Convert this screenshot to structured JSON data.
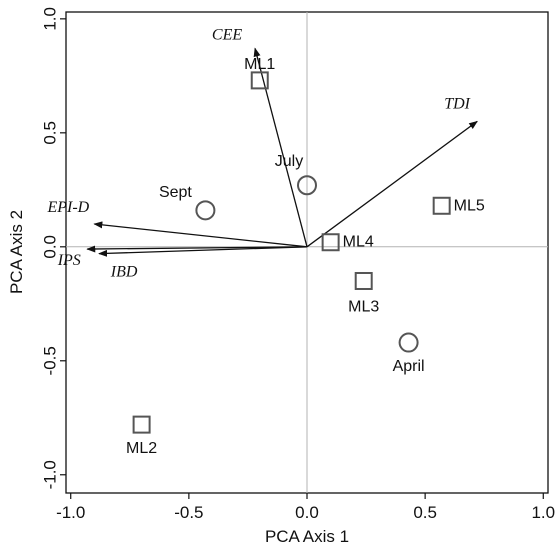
{
  "chart_data": {
    "type": "scatter",
    "title": "",
    "xlabel": "PCA Axis 1",
    "ylabel": "PCA Axis 2",
    "xlim": [
      -1.02,
      1.02
    ],
    "ylim": [
      -1.08,
      1.03
    ],
    "x_ticks": [
      -1.0,
      -0.5,
      0.0,
      0.5,
      1.0
    ],
    "y_ticks": [
      -1.0,
      -0.5,
      0.0,
      0.5,
      1.0
    ],
    "x_tick_labels": [
      "-1.0",
      "-0.5",
      "0.0",
      "0.5",
      "1.0"
    ],
    "y_tick_labels": [
      "-1.0",
      "-0.5",
      "0.0",
      "0.5",
      "1.0"
    ],
    "grid": false,
    "reference_lines": [
      0,
      0
    ],
    "sites": [
      {
        "label": "ML1",
        "x": -0.2,
        "y": 0.73
      },
      {
        "label": "ML2",
        "x": -0.7,
        "y": -0.78
      },
      {
        "label": "ML3",
        "x": 0.24,
        "y": -0.15
      },
      {
        "label": "ML4",
        "x": 0.1,
        "y": 0.02
      },
      {
        "label": "ML5",
        "x": 0.57,
        "y": 0.18
      }
    ],
    "months": [
      {
        "label": "July",
        "x": 0.0,
        "y": 0.27
      },
      {
        "label": "Sept",
        "x": -0.43,
        "y": 0.16
      },
      {
        "label": "April",
        "x": 0.43,
        "y": -0.42
      }
    ],
    "vectors": [
      {
        "label": "CEE",
        "x": -0.22,
        "y": 0.87
      },
      {
        "label": "TDI",
        "x": 0.72,
        "y": 0.55
      },
      {
        "label": "EPI-D",
        "x": -0.9,
        "y": 0.1
      },
      {
        "label": "IPS",
        "x": -0.93,
        "y": -0.01
      },
      {
        "label": "IBD",
        "x": -0.88,
        "y": -0.03
      }
    ]
  }
}
